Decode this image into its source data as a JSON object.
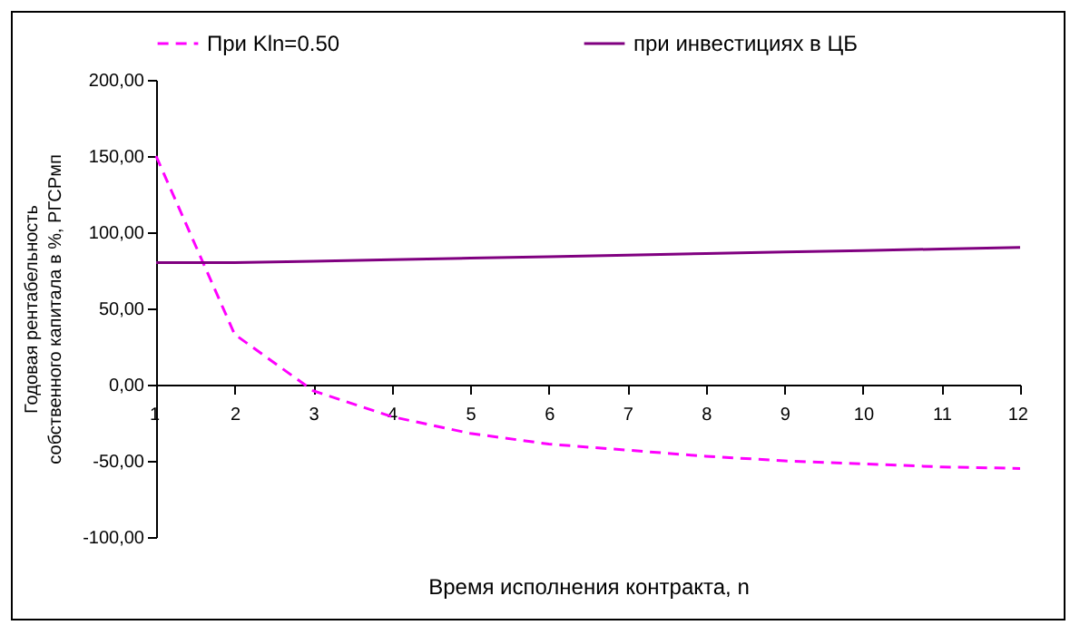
{
  "chart_data": {
    "type": "line",
    "xlabel": "Время исполнения контракта, n",
    "ylabel": "Годовая рентабельность собственного капитала в %, РГСРмп",
    "x": [
      1,
      2,
      3,
      4,
      5,
      6,
      7,
      8,
      9,
      10,
      11,
      12
    ],
    "series": [
      {
        "name": "При Kln=0.50",
        "color": "#ff00ff",
        "line_style": "dashed",
        "values": [
          150,
          33,
          -4,
          -21,
          -32,
          -39,
          -43,
          -47,
          -50,
          -52,
          -54,
          -55
        ]
      },
      {
        "name": "при  инвестициях в ЦБ",
        "color": "#800080",
        "line_style": "solid",
        "values": [
          80,
          80,
          81,
          82,
          83,
          84,
          85,
          86,
          87,
          88,
          89,
          90
        ]
      }
    ],
    "xlim": [
      1,
      12
    ],
    "xticks": [
      1,
      2,
      3,
      4,
      5,
      6,
      7,
      8,
      9,
      10,
      11,
      12
    ],
    "ylim": [
      -100,
      200
    ],
    "yticks": [
      {
        "value": -100,
        "label": "-100,00"
      },
      {
        "value": -50,
        "label": "-50,00"
      },
      {
        "value": 0,
        "label": "0,00"
      },
      {
        "value": 50,
        "label": "50,00"
      },
      {
        "value": 100,
        "label": "100,00"
      },
      {
        "value": 150,
        "label": "150,00"
      },
      {
        "value": 200,
        "label": "200,00"
      }
    ],
    "grid": false,
    "legend": "top",
    "marker": "none"
  }
}
